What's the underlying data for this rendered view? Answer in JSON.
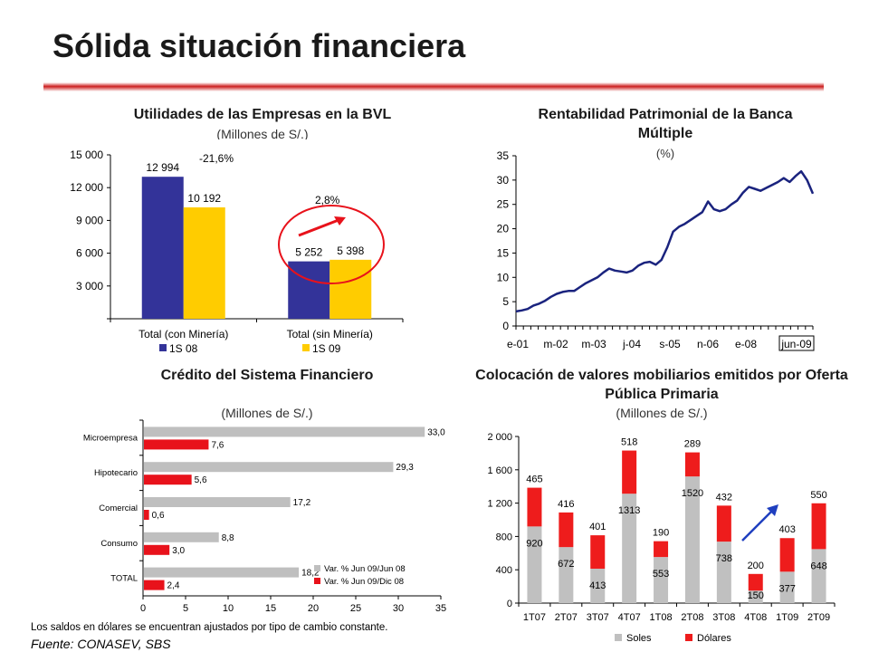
{
  "slide": {
    "title": "Sólida situación financiera",
    "footnote": "Los saldos en dólares se encuentran ajustados por tipo de cambio constante.",
    "source": "Fuente: CONASEV, SBS",
    "accent_color": "#cc1f1f"
  },
  "chart_data": [
    {
      "id": "utilidades",
      "type": "bar",
      "title": "Utilidades de las Empresas en la BVL",
      "subtitle": "(Millones de S/.)",
      "categories": [
        "Total (con Minería)",
        "Total (sin Minería)"
      ],
      "series": [
        {
          "name": "1S 08",
          "values": [
            12994,
            5252
          ],
          "labels": [
            "12 994",
            "5 252"
          ],
          "color": "#333399"
        },
        {
          "name": "1S 09",
          "values": [
            10192,
            5398
          ],
          "labels": [
            "10 192",
            "5 398"
          ],
          "color": "#ffcc00"
        }
      ],
      "yticks": [
        "",
        "3 000",
        "6 000",
        "9 000",
        "12 000",
        "15 000"
      ],
      "ylim": [
        0,
        15000
      ],
      "annotations": [
        "-21,6%",
        "2,8%"
      ],
      "legend_position": "bottom"
    },
    {
      "id": "rentabilidad",
      "type": "line",
      "title": "Rentabilidad Patrimonial de la Banca Múltiple",
      "subtitle": "(%)",
      "xticks": [
        "e-01",
        "m-02",
        "m-03",
        "j-04",
        "s-05",
        "n-06",
        "e-08",
        "jun-09"
      ],
      "yticks": [
        "0",
        "5",
        "10",
        "15",
        "20",
        "25",
        "30",
        "35"
      ],
      "ylim": [
        0,
        35
      ],
      "color": "#1a237e",
      "x": [
        0,
        2,
        4,
        6,
        8,
        10,
        12,
        14,
        16,
        18,
        20,
        22,
        24,
        26,
        28,
        30,
        32,
        34,
        36,
        38,
        40,
        42,
        44,
        46,
        48,
        50,
        52,
        54,
        56,
        58,
        60,
        62,
        64,
        66,
        68,
        70,
        72,
        74,
        76,
        78,
        80,
        82,
        84,
        86,
        88,
        90,
        92,
        94,
        96,
        98,
        100,
        102
      ],
      "y": [
        3.0,
        3.2,
        3.5,
        4.2,
        4.6,
        5.2,
        6.0,
        6.6,
        7.0,
        7.2,
        7.2,
        8.0,
        8.8,
        9.4,
        10.0,
        11.0,
        11.8,
        11.4,
        11.2,
        11.0,
        11.4,
        12.4,
        13.0,
        13.2,
        12.6,
        13.6,
        16.2,
        19.4,
        20.4,
        21.0,
        21.8,
        22.6,
        23.4,
        25.6,
        24.0,
        23.6,
        24.0,
        25.0,
        25.8,
        27.4,
        28.6,
        28.2,
        27.8,
        28.4,
        29.0,
        29.6,
        30.4,
        29.6,
        30.8,
        31.8,
        30.0,
        27.2
      ]
    },
    {
      "id": "credito",
      "type": "bar",
      "orientation": "horizontal",
      "title": "Crédito del Sistema Financiero",
      "subtitle": "(Millones de S/.)",
      "categories": [
        "Microempresa",
        "Hipotecario",
        "Comercial",
        "Consumo",
        "TOTAL"
      ],
      "series": [
        {
          "name": "Var. % Jun 09/Jun 08",
          "values": [
            33.0,
            29.3,
            17.2,
            8.8,
            18.2
          ],
          "labels": [
            "33,0",
            "29,3",
            "17,2",
            "8,8",
            "18,2"
          ],
          "color": "#bfbfbf"
        },
        {
          "name": "Var. % Jun 09/Dic 08",
          "values": [
            7.6,
            5.6,
            0.6,
            3.0,
            2.4
          ],
          "labels": [
            "7,6",
            "5,6",
            "0,6",
            "3,0",
            "2,4"
          ],
          "color": "#e8121b"
        }
      ],
      "xticks": [
        "0",
        "5",
        "10",
        "15",
        "20",
        "25",
        "30",
        "35"
      ],
      "xlim": [
        0,
        35
      ],
      "legend_position": "bottom-right"
    },
    {
      "id": "colocacion",
      "type": "bar",
      "stacked": true,
      "title": "Colocación de valores mobiliarios emitidos por Oferta Pública Primaria",
      "subtitle": "(Millones de S/.)",
      "categories": [
        "1T07",
        "2T07",
        "3T07",
        "4T07",
        "1T08",
        "2T08",
        "3T08",
        "4T08",
        "1T09",
        "2T09"
      ],
      "series": [
        {
          "name": "Soles",
          "values": [
            920,
            672,
            413,
            1313,
            553,
            1520,
            738,
            150,
            377,
            648
          ],
          "labels": [
            "920",
            "672",
            "413",
            "1313",
            "553",
            "1520",
            "738",
            "150",
            "377",
            "648"
          ],
          "color": "#c0c0c0"
        },
        {
          "name": "Dólares",
          "values": [
            465,
            416,
            401,
            518,
            190,
            289,
            432,
            200,
            403,
            550
          ],
          "labels": [
            "465",
            "416",
            "401",
            "518",
            "190",
            "289",
            "432",
            "200",
            "403",
            "550"
          ],
          "color": "#ee1c1c"
        }
      ],
      "yticks": [
        "0",
        "400",
        "800",
        "1 200",
        "1 600",
        "2 000"
      ],
      "ylim": [
        0,
        2000
      ],
      "legend_position": "bottom"
    }
  ]
}
